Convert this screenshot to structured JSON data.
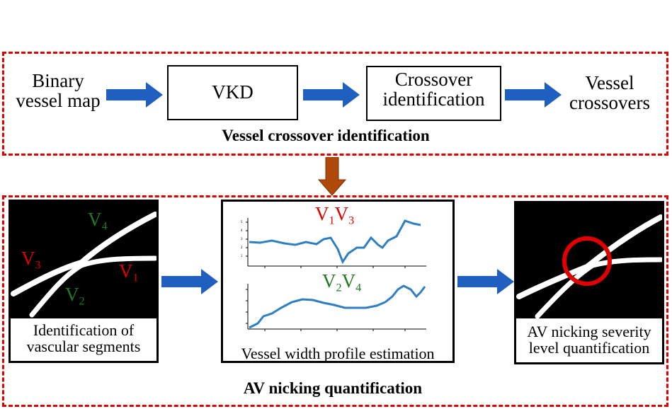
{
  "top_section": {
    "caption": "Vessel crossover identification",
    "input_label_1": "Binary",
    "input_label_2": "vessel map",
    "vkd_label": "VKD",
    "crossover_label_1": "Crossover",
    "crossover_label_2": "identification",
    "output_label_1": "Vessel",
    "output_label_2": "crossovers"
  },
  "bottom_section": {
    "caption": "AV nicking quantification",
    "panel1": {
      "caption_1": "Identification of",
      "caption_2": "vascular segments",
      "labels": [
        {
          "letter": "V",
          "sub": "4",
          "color": "#1f7a1f"
        },
        {
          "letter": "V",
          "sub": "3",
          "color": "#e00000"
        },
        {
          "letter": "V",
          "sub": "1",
          "color": "#e00000"
        },
        {
          "letter": "V",
          "sub": "2",
          "color": "#1f7a1f"
        }
      ]
    },
    "panel2": {
      "caption": "Vessel width profile estimation",
      "plot1_label": {
        "a": "V",
        "a_sub": "1",
        "b": "V",
        "b_sub": "3",
        "color": "#e00000"
      },
      "plot2_label": {
        "a": "V",
        "a_sub": "2",
        "b": "V",
        "b_sub": "4",
        "color": "#1f7a1f"
      }
    },
    "panel3": {
      "caption_1": "AV nicking severity",
      "caption_2": "level quantification"
    }
  },
  "colors": {
    "dashed_border": "#e00000",
    "arrow_blue": "#1f5fbf",
    "arrow_brown": "#b04a0a",
    "plot_line": "#2e7fc1",
    "highlight_circle": "#e00000"
  }
}
